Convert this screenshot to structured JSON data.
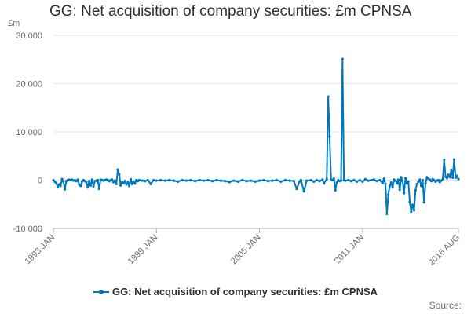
{
  "colors": {
    "series": "#0077ba",
    "grid": "#e6e6e6",
    "axis": "#b0b0b0"
  },
  "chart_data": {
    "type": "line",
    "title": "GG: Net acquisition of company securities: £m CPNSA",
    "ylabel": "£m",
    "xlabel": "",
    "ylim": [
      -10000,
      30000
    ],
    "xlim": [
      "1993-01",
      "2016-08"
    ],
    "y_ticks": [
      30000,
      20000,
      10000,
      0,
      -10000
    ],
    "y_tick_labels": [
      "30 000",
      "20 000",
      "10 000",
      "0",
      "-10 000"
    ],
    "x_ticks": [
      "1993-01",
      "1999-01",
      "2005-01",
      "2011-01",
      "2016-08"
    ],
    "x_tick_labels": [
      "1993 JAN",
      "1999 JAN",
      "2005 JAN",
      "2011 JAN",
      "2016 AUG"
    ],
    "grid": true,
    "legend": "bottom",
    "series": [
      {
        "name": "GG: Net acquisition of company securities: £m CPNSA",
        "points": [
          [
            "1993-01",
            0
          ],
          [
            "1993-02",
            -300
          ],
          [
            "1993-03",
            -600
          ],
          [
            "1993-04",
            -1500
          ],
          [
            "1993-05",
            -900
          ],
          [
            "1993-06",
            -1200
          ],
          [
            "1993-07",
            200
          ],
          [
            "1993-08",
            -300
          ],
          [
            "1993-09",
            -1900
          ],
          [
            "1993-10",
            -200
          ],
          [
            "1993-11",
            0
          ],
          [
            "1993-12",
            100
          ],
          [
            "1994-01",
            0
          ],
          [
            "1994-02",
            100
          ],
          [
            "1994-03",
            -100
          ],
          [
            "1994-04",
            0
          ],
          [
            "1994-05",
            -200
          ],
          [
            "1994-06",
            100
          ],
          [
            "1994-07",
            -900
          ],
          [
            "1994-08",
            -1200
          ],
          [
            "1994-09",
            -300
          ],
          [
            "1994-10",
            0
          ],
          [
            "1994-11",
            -200
          ],
          [
            "1994-12",
            -400
          ],
          [
            "1995-01",
            -1500
          ],
          [
            "1995-02",
            -200
          ],
          [
            "1995-03",
            -1100
          ],
          [
            "1995-04",
            100
          ],
          [
            "1995-05",
            -1300
          ],
          [
            "1995-06",
            -200
          ],
          [
            "1995-07",
            -100
          ],
          [
            "1995-08",
            0
          ],
          [
            "1995-09",
            -1800
          ],
          [
            "1995-10",
            100
          ],
          [
            "1995-11",
            0
          ],
          [
            "1995-12",
            -100
          ],
          [
            "1996-01",
            0
          ],
          [
            "1996-02",
            100
          ],
          [
            "1996-03",
            0
          ],
          [
            "1996-04",
            -200
          ],
          [
            "1996-05",
            0
          ],
          [
            "1996-06",
            100
          ],
          [
            "1996-07",
            -400
          ],
          [
            "1996-08",
            -100
          ],
          [
            "1996-09",
            -800
          ],
          [
            "1996-10",
            2200
          ],
          [
            "1996-11",
            1200
          ],
          [
            "1996-12",
            -1100
          ],
          [
            "1997-01",
            -400
          ],
          [
            "1997-02",
            -600
          ],
          [
            "1997-03",
            -200
          ],
          [
            "1997-04",
            -900
          ],
          [
            "1997-05",
            -400
          ],
          [
            "1997-06",
            -1200
          ],
          [
            "1997-07",
            200
          ],
          [
            "1997-08",
            -800
          ],
          [
            "1997-09",
            -300
          ],
          [
            "1997-10",
            -700
          ],
          [
            "1997-11",
            0
          ],
          [
            "1997-12",
            -200
          ],
          [
            "1998-01",
            0
          ],
          [
            "1998-03",
            -100
          ],
          [
            "1998-05",
            -200
          ],
          [
            "1998-07",
            0
          ],
          [
            "1998-09",
            -800
          ],
          [
            "1998-11",
            0
          ],
          [
            "1999-01",
            -100
          ],
          [
            "1999-04",
            0
          ],
          [
            "1999-07",
            -100
          ],
          [
            "1999-10",
            0
          ],
          [
            "2000-01",
            -100
          ],
          [
            "2000-04",
            -300
          ],
          [
            "2000-07",
            0
          ],
          [
            "2000-10",
            -100
          ],
          [
            "2001-01",
            0
          ],
          [
            "2001-04",
            -200
          ],
          [
            "2001-07",
            0
          ],
          [
            "2001-10",
            -100
          ],
          [
            "2002-01",
            0
          ],
          [
            "2002-04",
            -200
          ],
          [
            "2002-07",
            0
          ],
          [
            "2002-10",
            -100
          ],
          [
            "2003-01",
            -200
          ],
          [
            "2003-04",
            -400
          ],
          [
            "2003-07",
            -100
          ],
          [
            "2003-10",
            -300
          ],
          [
            "2004-01",
            0
          ],
          [
            "2004-04",
            -200
          ],
          [
            "2004-07",
            -100
          ],
          [
            "2004-10",
            -300
          ],
          [
            "2005-01",
            -100
          ],
          [
            "2005-04",
            0
          ],
          [
            "2005-07",
            -200
          ],
          [
            "2005-10",
            -100
          ],
          [
            "2006-01",
            0
          ],
          [
            "2006-04",
            -300
          ],
          [
            "2006-07",
            0
          ],
          [
            "2006-10",
            -100
          ],
          [
            "2007-01",
            -200
          ],
          [
            "2007-03",
            -1800
          ],
          [
            "2007-05",
            -300
          ],
          [
            "2007-06",
            0
          ],
          [
            "2007-08",
            -2300
          ],
          [
            "2007-10",
            -100
          ],
          [
            "2008-01",
            0
          ],
          [
            "2008-03",
            -300
          ],
          [
            "2008-05",
            0
          ],
          [
            "2008-07",
            -200
          ],
          [
            "2008-09",
            100
          ],
          [
            "2008-10",
            -700
          ],
          [
            "2008-12",
            200
          ],
          [
            "2009-01",
            17300
          ],
          [
            "2009-02",
            9000
          ],
          [
            "2009-03",
            200
          ],
          [
            "2009-04",
            0
          ],
          [
            "2009-05",
            300
          ],
          [
            "2009-06",
            -2100
          ],
          [
            "2009-07",
            -500
          ],
          [
            "2009-08",
            0
          ],
          [
            "2009-09",
            -200
          ],
          [
            "2009-10",
            -100
          ],
          [
            "2009-11",
            25100
          ],
          [
            "2009-12",
            0
          ],
          [
            "2010-01",
            -100
          ],
          [
            "2010-03",
            0
          ],
          [
            "2010-05",
            -200
          ],
          [
            "2010-07",
            0
          ],
          [
            "2010-09",
            -300
          ],
          [
            "2010-11",
            0
          ],
          [
            "2011-01",
            -300
          ],
          [
            "2011-03",
            200
          ],
          [
            "2011-05",
            -100
          ],
          [
            "2011-07",
            0
          ],
          [
            "2011-09",
            100
          ],
          [
            "2011-11",
            -200
          ],
          [
            "2012-01",
            0
          ],
          [
            "2012-03",
            -600
          ],
          [
            "2012-04",
            300
          ],
          [
            "2012-05",
            -800
          ],
          [
            "2012-06",
            -7000
          ],
          [
            "2012-07",
            -3000
          ],
          [
            "2012-08",
            -1200
          ],
          [
            "2012-09",
            -500
          ],
          [
            "2012-10",
            -1500
          ],
          [
            "2012-11",
            100
          ],
          [
            "2012-12",
            -100
          ],
          [
            "2013-01",
            -700
          ],
          [
            "2013-02",
            100
          ],
          [
            "2013-03",
            -2000
          ],
          [
            "2013-04",
            600
          ],
          [
            "2013-05",
            -200
          ],
          [
            "2013-06",
            -2700
          ],
          [
            "2013-07",
            400
          ],
          [
            "2013-08",
            -700
          ],
          [
            "2013-09",
            -300
          ],
          [
            "2013-10",
            -4500
          ],
          [
            "2013-11",
            -6500
          ],
          [
            "2013-12",
            -5100
          ],
          [
            "2014-01",
            -6200
          ],
          [
            "2014-02",
            -2100
          ],
          [
            "2014-03",
            -800
          ],
          [
            "2014-04",
            -300
          ],
          [
            "2014-05",
            100
          ],
          [
            "2014-06",
            -1200
          ],
          [
            "2014-07",
            0
          ],
          [
            "2014-08",
            -4600
          ],
          [
            "2014-09",
            -700
          ],
          [
            "2014-10",
            600
          ],
          [
            "2014-11",
            300
          ],
          [
            "2014-12",
            100
          ],
          [
            "2015-01",
            -200
          ],
          [
            "2015-02",
            200
          ],
          [
            "2015-03",
            0
          ],
          [
            "2015-04",
            -300
          ],
          [
            "2015-05",
            -100
          ],
          [
            "2015-06",
            0
          ],
          [
            "2015-07",
            -400
          ],
          [
            "2015-08",
            -100
          ],
          [
            "2015-09",
            200
          ],
          [
            "2015-10",
            4200
          ],
          [
            "2015-11",
            700
          ],
          [
            "2015-12",
            400
          ],
          [
            "2016-01",
            1100
          ],
          [
            "2016-02",
            600
          ],
          [
            "2016-03",
            2100
          ],
          [
            "2016-04",
            500
          ],
          [
            "2016-05",
            4300
          ],
          [
            "2016-06",
            500
          ],
          [
            "2016-07",
            900
          ],
          [
            "2016-08",
            200
          ]
        ]
      }
    ]
  },
  "legend_label": "GG: Net acquisition of company securities: £m CPNSA",
  "source_label": "Source:"
}
